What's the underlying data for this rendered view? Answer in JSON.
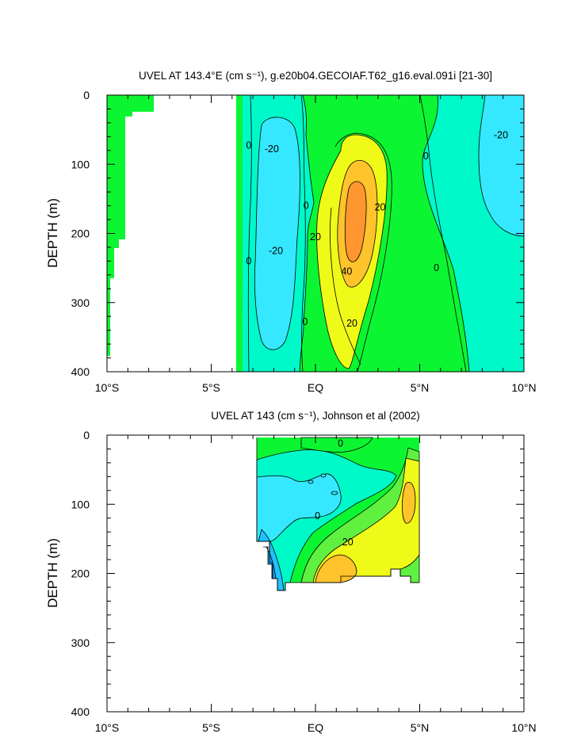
{
  "chart_data": [
    {
      "type": "heatmap",
      "subtype": "filled-contour",
      "title": "UVEL AT 143.4°E (cm s⁻¹), g.e20b04.GECOIAF.T62_g16.eval.091i [21-30]",
      "ylabel": "DEPTH (m)",
      "xlabel": "",
      "xlim": [
        -10,
        10
      ],
      "ylim": [
        400,
        0
      ],
      "x_tick_labels": [
        "10°S",
        "5°S",
        "EQ",
        "5°N",
        "10°N"
      ],
      "x_ticks": [
        -10,
        -5,
        0,
        5,
        10
      ],
      "y_tick_labels": [
        "0",
        "100",
        "200",
        "300",
        "400"
      ],
      "y_ticks": [
        0,
        100,
        200,
        300,
        400
      ],
      "contour_labels": [
        {
          "text": "0",
          "lat": -3.2,
          "depth": 73
        },
        {
          "text": "-20",
          "lat": -2.1,
          "depth": 78
        },
        {
          "text": "0",
          "lat": -0.45,
          "depth": 160
        },
        {
          "text": "20",
          "lat": 0.0,
          "depth": 205
        },
        {
          "text": "-20",
          "lat": -1.9,
          "depth": 225
        },
        {
          "text": "0",
          "lat": -3.2,
          "depth": 240
        },
        {
          "text": "40",
          "lat": 1.5,
          "depth": 255
        },
        {
          "text": "20",
          "lat": 3.1,
          "depth": 162
        },
        {
          "text": "0",
          "lat": -0.5,
          "depth": 328
        },
        {
          "text": "20",
          "lat": 1.75,
          "depth": 330
        },
        {
          "text": "0",
          "lat": 5.3,
          "depth": 88
        },
        {
          "text": "0",
          "lat": 5.8,
          "depth": 250
        },
        {
          "text": "-20",
          "lat": 8.9,
          "depth": 58
        }
      ],
      "colors": {
        "lt_-20": "#36e8ff",
        "-20_0": "#00f9c8",
        "0_20": "#0cf532",
        "20_30": "#f0fa18",
        "30_40": "#ffc32c",
        "gt_40": "#ff9630",
        "contour": "#000000"
      }
    },
    {
      "type": "heatmap",
      "subtype": "filled-contour",
      "title": "UVEL AT 143 (cm s⁻¹), Johnson et al (2002)",
      "ylabel": "DEPTH (m)",
      "xlabel": "",
      "xlim": [
        -10,
        10
      ],
      "ylim": [
        400,
        0
      ],
      "x_tick_labels": [
        "10°S",
        "5°S",
        "EQ",
        "5°N",
        "10°N"
      ],
      "x_ticks": [
        -10,
        -5,
        0,
        5,
        10
      ],
      "y_tick_labels": [
        "0",
        "100",
        "200",
        "300",
        "400"
      ],
      "y_ticks": [
        0,
        100,
        200,
        300,
        400
      ],
      "data_extent": {
        "lat": [
          -2.8,
          5.0
        ],
        "depth": [
          5,
          225
        ]
      },
      "contour_labels": [
        {
          "text": "0",
          "lat": 1.2,
          "depth": 12
        },
        {
          "text": "0",
          "lat": 0.1,
          "depth": 117
        },
        {
          "text": "20",
          "lat": 1.55,
          "depth": 155
        }
      ],
      "colors": {
        "lt_-40": "#1aa0e6",
        "-40_-30": "#20c0ff",
        "-30_-20": "#36e8ff",
        "-20_0": "#00f9c8",
        "0_10": "#0cf532",
        "10_20": "#60f040",
        "20_30": "#f0fa18",
        "gt_30": "#ffc32c",
        "contour": "#000000"
      }
    }
  ]
}
